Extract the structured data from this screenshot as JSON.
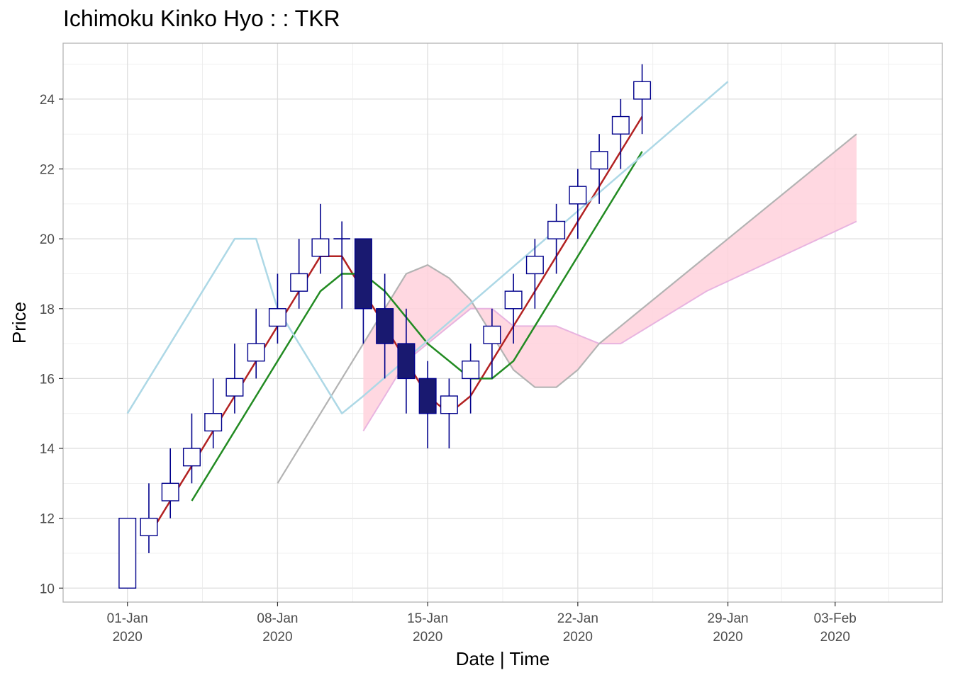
{
  "chart_data": {
    "type": "candlestick",
    "title": "Ichimoku Kinko Hyo : : TKR",
    "xlabel": "Date | Time",
    "ylabel": "Price",
    "ylim": [
      9.6,
      25.6
    ],
    "xlim": [
      "2019-12-29",
      "2020-02-08"
    ],
    "y_ticks": [
      10,
      12,
      14,
      16,
      18,
      20,
      22,
      24
    ],
    "x_ticks": [
      {
        "date": "2020-01-01",
        "label_line1": "01-Jan",
        "label_line2": "2020"
      },
      {
        "date": "2020-01-08",
        "label_line1": "08-Jan",
        "label_line2": "2020"
      },
      {
        "date": "2020-01-15",
        "label_line1": "15-Jan",
        "label_line2": "2020"
      },
      {
        "date": "2020-01-22",
        "label_line1": "22-Jan",
        "label_line2": "2020"
      },
      {
        "date": "2020-01-29",
        "label_line1": "29-Jan",
        "label_line2": "2020"
      },
      {
        "date": "2020-02-03",
        "label_line1": "03-Feb",
        "label_line2": "2020"
      }
    ],
    "grid": true,
    "colors": {
      "candle_up_fill": "#ffffff",
      "candle_down_fill": "#191970",
      "candle_border": "#00008b",
      "tenkan": "#b22222",
      "kijun": "#228b22",
      "chikou": "#add8e6",
      "senkou_a": "#b3b3b3",
      "senkou_b": "#e8b4e0",
      "cloud_fill": "#ffd1dc",
      "grid": "#ebebeb",
      "panel_border": "#b3b3b3"
    },
    "candles": [
      {
        "date": "2020-01-01",
        "open": 10,
        "high": 12,
        "low": 10,
        "close": 12
      },
      {
        "date": "2020-01-02",
        "open": 11.5,
        "high": 13,
        "low": 11,
        "close": 12
      },
      {
        "date": "2020-01-03",
        "open": 12.5,
        "high": 14,
        "low": 12,
        "close": 13
      },
      {
        "date": "2020-01-04",
        "open": 13.5,
        "high": 15,
        "low": 13,
        "close": 14
      },
      {
        "date": "2020-01-05",
        "open": 14.5,
        "high": 16,
        "low": 14,
        "close": 15
      },
      {
        "date": "2020-01-06",
        "open": 15.5,
        "high": 17,
        "low": 15,
        "close": 16
      },
      {
        "date": "2020-01-07",
        "open": 16.5,
        "high": 18,
        "low": 16,
        "close": 17
      },
      {
        "date": "2020-01-08",
        "open": 17.5,
        "high": 19,
        "low": 17,
        "close": 18
      },
      {
        "date": "2020-01-09",
        "open": 18.5,
        "high": 20,
        "low": 18,
        "close": 19
      },
      {
        "date": "2020-01-10",
        "open": 19.5,
        "high": 21,
        "low": 19,
        "close": 20
      },
      {
        "date": "2020-01-11",
        "open": 20,
        "high": 20.5,
        "low": 18,
        "close": 20
      },
      {
        "date": "2020-01-12",
        "open": 20,
        "high": 20,
        "low": 17,
        "close": 18
      },
      {
        "date": "2020-01-13",
        "open": 18,
        "high": 19,
        "low": 16,
        "close": 17
      },
      {
        "date": "2020-01-14",
        "open": 17,
        "high": 18,
        "low": 15,
        "close": 16
      },
      {
        "date": "2020-01-15",
        "open": 16,
        "high": 16.5,
        "low": 14,
        "close": 15
      },
      {
        "date": "2020-01-16",
        "open": 15,
        "high": 16,
        "low": 14,
        "close": 15.5
      },
      {
        "date": "2020-01-17",
        "open": 16,
        "high": 17,
        "low": 15,
        "close": 16.5
      },
      {
        "date": "2020-01-18",
        "open": 17,
        "high": 18,
        "low": 16,
        "close": 17.5
      },
      {
        "date": "2020-01-19",
        "open": 18,
        "high": 19,
        "low": 17,
        "close": 18.5
      },
      {
        "date": "2020-01-20",
        "open": 19,
        "high": 20,
        "low": 18,
        "close": 19.5
      },
      {
        "date": "2020-01-21",
        "open": 20,
        "high": 21,
        "low": 19,
        "close": 20.5
      },
      {
        "date": "2020-01-22",
        "open": 21,
        "high": 22,
        "low": 20,
        "close": 21.5
      },
      {
        "date": "2020-01-23",
        "open": 22,
        "high": 23,
        "low": 21,
        "close": 22.5
      },
      {
        "date": "2020-01-24",
        "open": 23,
        "high": 24,
        "low": 22,
        "close": 23.5
      },
      {
        "date": "2020-01-25",
        "open": 24,
        "high": 25,
        "low": 23,
        "close": 24.5
      }
    ],
    "lines": [
      {
        "name": "tenkan",
        "color_key": "tenkan",
        "points": [
          [
            "2020-01-02",
            11.5
          ],
          [
            "2020-01-03",
            12.5
          ],
          [
            "2020-01-04",
            13.5
          ],
          [
            "2020-01-05",
            14.5
          ],
          [
            "2020-01-06",
            15.5
          ],
          [
            "2020-01-07",
            16.5
          ],
          [
            "2020-01-08",
            17.5
          ],
          [
            "2020-01-09",
            18.5
          ],
          [
            "2020-01-10",
            19.5
          ],
          [
            "2020-01-11",
            19.5
          ],
          [
            "2020-01-12",
            18.5
          ],
          [
            "2020-01-13",
            17.5
          ],
          [
            "2020-01-14",
            16.5
          ],
          [
            "2020-01-15",
            15.5
          ],
          [
            "2020-01-16",
            15
          ],
          [
            "2020-01-17",
            15.5
          ],
          [
            "2020-01-18",
            16.5
          ],
          [
            "2020-01-19",
            17.5
          ],
          [
            "2020-01-20",
            18.5
          ],
          [
            "2020-01-21",
            19.5
          ],
          [
            "2020-01-22",
            20.5
          ],
          [
            "2020-01-23",
            21.5
          ],
          [
            "2020-01-24",
            22.5
          ],
          [
            "2020-01-25",
            23.5
          ]
        ]
      },
      {
        "name": "kijun",
        "color_key": "kijun",
        "points": [
          [
            "2020-01-04",
            12.5
          ],
          [
            "2020-01-09",
            17.5
          ],
          [
            "2020-01-10",
            18.5
          ],
          [
            "2020-01-11",
            19
          ],
          [
            "2020-01-12",
            19
          ],
          [
            "2020-01-13",
            18.5
          ],
          [
            "2020-01-14",
            17.75
          ],
          [
            "2020-01-15",
            17
          ],
          [
            "2020-01-16",
            16.5
          ],
          [
            "2020-01-17",
            16
          ],
          [
            "2020-01-18",
            16
          ],
          [
            "2020-01-19",
            16.5
          ],
          [
            "2020-01-25",
            22.5
          ]
        ]
      },
      {
        "name": "chikou",
        "color_key": "chikou",
        "points": [
          [
            "2020-01-01",
            15
          ],
          [
            "2020-01-06",
            20
          ],
          [
            "2020-01-07",
            20
          ],
          [
            "2020-01-08",
            18
          ],
          [
            "2020-01-11",
            15
          ],
          [
            "2020-01-12",
            15.5
          ],
          [
            "2020-01-29",
            24.5
          ]
        ]
      }
    ],
    "cloud": {
      "senkou_a": [
        [
          "2020-01-08",
          13
        ],
        [
          "2020-01-14",
          19
        ],
        [
          "2020-01-15",
          19.25
        ],
        [
          "2020-01-16",
          18.875
        ],
        [
          "2020-01-17",
          18.25
        ],
        [
          "2020-01-18",
          17.25
        ],
        [
          "2020-01-19",
          16.25
        ],
        [
          "2020-01-20",
          15.75
        ],
        [
          "2020-01-21",
          15.75
        ],
        [
          "2020-01-22",
          16.25
        ],
        [
          "2020-01-23",
          17
        ],
        [
          "2020-02-04",
          23
        ]
      ],
      "senkou_b": [
        [
          "2020-01-12",
          14.5
        ],
        [
          "2020-01-13",
          15.5
        ],
        [
          "2020-01-14",
          16.5
        ],
        [
          "2020-01-15",
          17
        ],
        [
          "2020-01-16",
          17.5
        ],
        [
          "2020-01-17",
          18
        ],
        [
          "2020-01-18",
          18
        ],
        [
          "2020-01-19",
          17.5
        ],
        [
          "2020-01-20",
          17.5
        ],
        [
          "2020-01-21",
          17.5
        ],
        [
          "2020-01-22",
          17.25
        ],
        [
          "2020-01-23",
          17
        ],
        [
          "2020-01-24",
          17
        ],
        [
          "2020-01-25",
          17.375
        ],
        [
          "2020-01-26",
          17.75
        ],
        [
          "2020-01-27",
          18.125
        ],
        [
          "2020-01-28",
          18.5
        ],
        [
          "2020-02-04",
          20.5
        ]
      ],
      "fill_start": "2020-01-12"
    }
  }
}
